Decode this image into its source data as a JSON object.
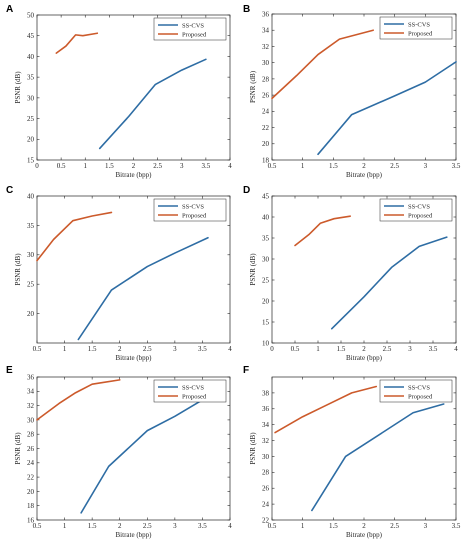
{
  "chart_data": [
    {
      "panel": "A",
      "type": "line",
      "xlabel": "Bitrate (bpp)",
      "ylabel": "PSNR (dB)",
      "xlim": [
        0,
        4
      ],
      "ylim": [
        15,
        50
      ],
      "xticks": [
        "0",
        "0.5",
        "1",
        "1.5",
        "2",
        "2.5",
        "3",
        "3.5",
        "4"
      ],
      "yticks": [
        "15",
        "20",
        "25",
        "30",
        "35",
        "40",
        "45",
        "50"
      ],
      "legend_position": "top-right",
      "series": [
        {
          "name": "SS-CVS",
          "color": "#2e6da4",
          "x": [
            1.3,
            1.9,
            2.45,
            3.0,
            3.5
          ],
          "y": [
            17.8,
            25.5,
            33.2,
            36.7,
            39.3
          ]
        },
        {
          "name": "Proposed",
          "color": "#cc5a2b",
          "x": [
            0.4,
            0.6,
            0.8,
            0.95,
            1.25
          ],
          "y": [
            40.8,
            42.5,
            45.2,
            45.0,
            45.6
          ]
        }
      ]
    },
    {
      "panel": "B",
      "type": "line",
      "xlabel": "Bitrate (bpp)",
      "ylabel": "PSNR (dB)",
      "xlim": [
        0.5,
        3.5
      ],
      "ylim": [
        18,
        36
      ],
      "xticks": [
        "0.5",
        "1",
        "1.5",
        "2",
        "2.5",
        "3",
        "3.5"
      ],
      "yticks": [
        "18",
        "20",
        "22",
        "24",
        "26",
        "28",
        "30",
        "32",
        "34",
        "36"
      ],
      "legend_position": "top-right",
      "series": [
        {
          "name": "SS-CVS",
          "color": "#2e6da4",
          "x": [
            1.25,
            1.8,
            2.5,
            3.0,
            3.5
          ],
          "y": [
            18.7,
            23.6,
            25.9,
            27.6,
            30.1
          ]
        },
        {
          "name": "Proposed",
          "color": "#cc5a2b",
          "x": [
            0.5,
            0.9,
            1.25,
            1.6,
            2.15
          ],
          "y": [
            25.6,
            28.4,
            31.0,
            32.9,
            34.0
          ]
        }
      ]
    },
    {
      "panel": "C",
      "type": "line",
      "xlabel": "Bitrate (bpp)",
      "ylabel": "PSNR (dB)",
      "xlim": [
        0.5,
        4
      ],
      "ylim": [
        15,
        40
      ],
      "xticks": [
        "0.5",
        "1",
        "1.5",
        "2",
        "2.5",
        "3",
        "3.5",
        "4"
      ],
      "yticks": [
        "20",
        "25",
        "30",
        "35",
        "40"
      ],
      "legend_position": "top-right",
      "series": [
        {
          "name": "SS-CVS",
          "color": "#2e6da4",
          "x": [
            1.25,
            1.85,
            2.5,
            3.0,
            3.6
          ],
          "y": [
            15.6,
            24.0,
            28.0,
            30.3,
            32.9
          ]
        },
        {
          "name": "Proposed",
          "color": "#cc5a2b",
          "x": [
            0.5,
            0.8,
            1.15,
            1.5,
            1.85
          ],
          "y": [
            29.0,
            32.6,
            35.8,
            36.6,
            37.2
          ]
        }
      ]
    },
    {
      "panel": "D",
      "type": "line",
      "xlabel": "Bitrate (bpp)",
      "ylabel": "PSNR (dB)",
      "xlim": [
        0,
        4
      ],
      "ylim": [
        10,
        45
      ],
      "xticks": [
        "0",
        "0.5",
        "1",
        "1.5",
        "2",
        "2.5",
        "3",
        "3.5",
        "4"
      ],
      "yticks": [
        "10",
        "15",
        "20",
        "25",
        "30",
        "35",
        "40",
        "45"
      ],
      "legend_position": "top-right",
      "series": [
        {
          "name": "SS-CVS",
          "color": "#2e6da4",
          "x": [
            1.3,
            2.0,
            2.6,
            3.2,
            3.8
          ],
          "y": [
            13.4,
            21.0,
            28.0,
            33.0,
            35.2
          ]
        },
        {
          "name": "Proposed",
          "color": "#cc5a2b",
          "x": [
            0.5,
            0.8,
            1.05,
            1.35,
            1.7
          ],
          "y": [
            33.2,
            35.8,
            38.5,
            39.6,
            40.2
          ]
        }
      ]
    },
    {
      "panel": "E",
      "type": "line",
      "xlabel": "Bitrate (bpp)",
      "ylabel": "PSNR (dB)",
      "xlim": [
        0.5,
        4
      ],
      "ylim": [
        16,
        36
      ],
      "xticks": [
        "0.5",
        "1",
        "1.5",
        "2",
        "2.5",
        "3",
        "3.5",
        "4"
      ],
      "yticks": [
        "16",
        "18",
        "20",
        "22",
        "24",
        "26",
        "28",
        "30",
        "32",
        "34",
        "36"
      ],
      "legend_position": "top-right",
      "series": [
        {
          "name": "SS-CVS",
          "color": "#2e6da4",
          "x": [
            1.3,
            1.8,
            2.5,
            3.0,
            3.5
          ],
          "y": [
            17.0,
            23.5,
            28.5,
            30.5,
            32.8
          ]
        },
        {
          "name": "Proposed",
          "color": "#cc5a2b",
          "x": [
            0.5,
            0.9,
            1.2,
            1.5,
            2.0
          ],
          "y": [
            30.0,
            32.3,
            33.8,
            35.0,
            35.6
          ]
        }
      ]
    },
    {
      "panel": "F",
      "type": "line",
      "xlabel": "Bitrate (bpp)",
      "ylabel": "PSNR (dB)",
      "xlim": [
        0.5,
        3.5
      ],
      "ylim": [
        22,
        40
      ],
      "xticks": [
        "0.5",
        "1",
        "1.5",
        "2",
        "2.5",
        "3",
        "3.5"
      ],
      "yticks": [
        "22",
        "24",
        "26",
        "28",
        "30",
        "32",
        "34",
        "36",
        "38"
      ],
      "legend_position": "top-right",
      "series": [
        {
          "name": "SS-CVS",
          "color": "#2e6da4",
          "x": [
            1.15,
            1.7,
            2.3,
            2.8,
            3.3
          ],
          "y": [
            23.2,
            30.0,
            33.0,
            35.5,
            36.6
          ]
        },
        {
          "name": "Proposed",
          "color": "#cc5a2b",
          "x": [
            0.55,
            1.0,
            1.4,
            1.8,
            2.2
          ],
          "y": [
            33.0,
            35.0,
            36.5,
            38.0,
            38.8
          ]
        }
      ]
    }
  ]
}
